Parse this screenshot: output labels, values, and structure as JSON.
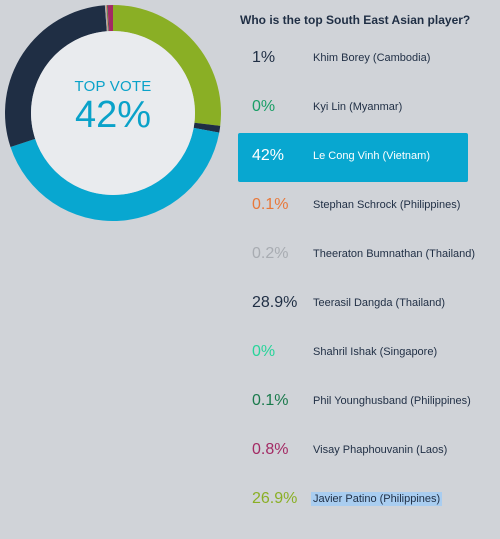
{
  "poll": {
    "question": "Who is the top South East Asian player?",
    "top_vote_label": "TOP VOTE",
    "top_vote_value": "42%",
    "options": [
      {
        "percent": "1%",
        "name": "Khim Borey (Cambodia)",
        "color": "#1f2e44",
        "value": 1,
        "selected": false,
        "highlighted": false
      },
      {
        "percent": "0%",
        "name": "Kyi Lin (Myanmar)",
        "color": "#1a9e66",
        "value": 0,
        "selected": false,
        "highlighted": false
      },
      {
        "percent": "42%",
        "name": "Le Cong Vinh (Vietnam)",
        "color": "#08a7d0",
        "value": 42,
        "selected": true,
        "highlighted": false
      },
      {
        "percent": "0.1%",
        "name": "Stephan Schrock (Philippines)",
        "color": "#e8783a",
        "value": 0.1,
        "selected": false,
        "highlighted": false
      },
      {
        "percent": "0.2%",
        "name": "Theeraton Bumnathan (Thailand)",
        "color": "#a8acb2",
        "value": 0.2,
        "selected": false,
        "highlighted": false
      },
      {
        "percent": "28.9%",
        "name": "Teerasil Dangda (Thailand)",
        "color": "#1f2e44",
        "value": 28.9,
        "selected": false,
        "highlighted": false
      },
      {
        "percent": "0%",
        "name": "Shahril Ishak (Singapore)",
        "color": "#27d49a",
        "value": 0,
        "selected": false,
        "highlighted": false
      },
      {
        "percent": "0.1%",
        "name": "Phil Younghusband (Philippines)",
        "color": "#1a7a4c",
        "value": 0.1,
        "selected": false,
        "highlighted": false
      },
      {
        "percent": "0.8%",
        "name": "Visay Phaphouvanin (Laos)",
        "color": "#a32a64",
        "value": 0.8,
        "selected": false,
        "highlighted": false
      },
      {
        "percent": "26.9%",
        "name": "Javier Patino (Philippines)",
        "color": "#8aaf25",
        "value": 26.9,
        "selected": false,
        "highlighted": true
      }
    ]
  }
}
